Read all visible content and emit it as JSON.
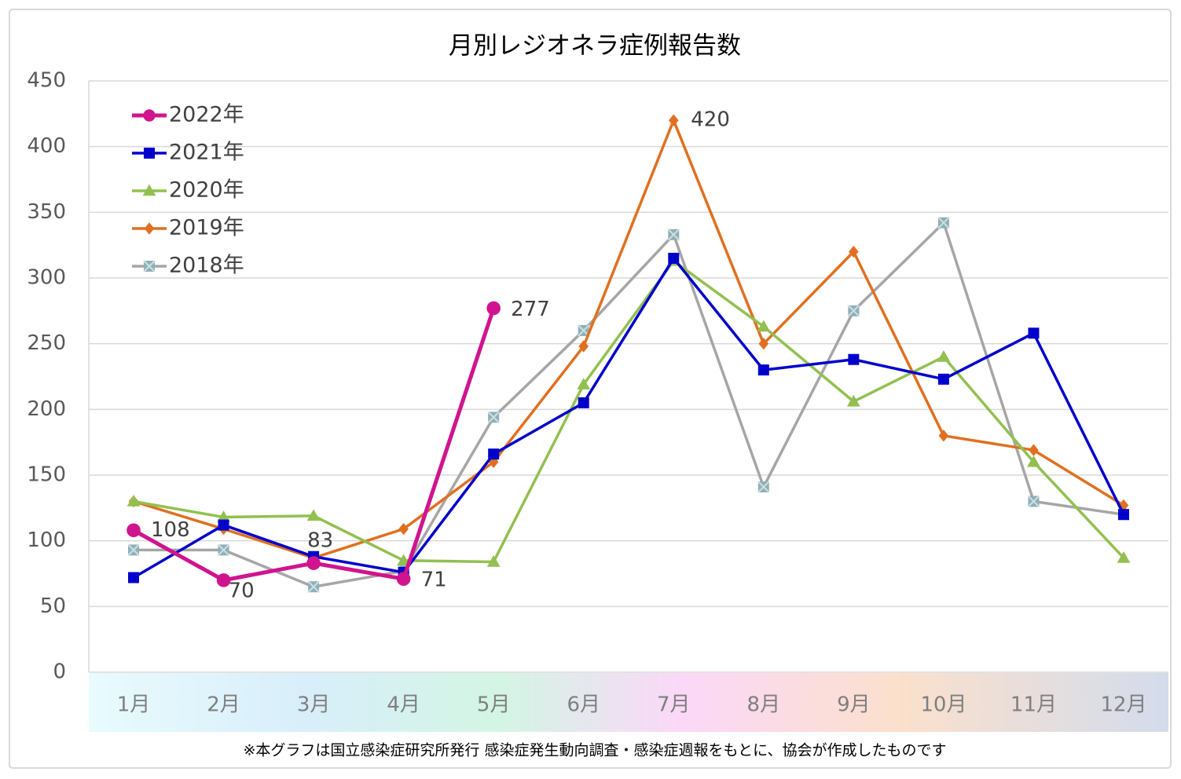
{
  "chart_data": {
    "type": "line",
    "title": "月別レジオネラ症例報告数",
    "footnote": "※本グラフは国立感染症研究所発行 感染症発生動向調査・感染症週報をもとに、協会が作成したものです",
    "categories": [
      "1月",
      "2月",
      "3月",
      "4月",
      "5月",
      "6月",
      "7月",
      "8月",
      "9月",
      "10月",
      "11月",
      "12月"
    ],
    "ylim": [
      0,
      450
    ],
    "yticks": [
      0,
      50,
      100,
      150,
      200,
      250,
      300,
      350,
      400,
      450
    ],
    "grid": true,
    "legend": "upper left",
    "series": [
      {
        "name": "2022年",
        "color": "#d0148f",
        "marker": "circle",
        "values": [
          108,
          70,
          83,
          71,
          277,
          null,
          null,
          null,
          null,
          null,
          null,
          null
        ],
        "value_labels": [
          "108",
          "70",
          "83",
          "71",
          "277",
          null,
          null,
          null,
          null,
          null,
          null,
          null
        ]
      },
      {
        "name": "2021年",
        "color": "#0000cc",
        "marker": "square",
        "values": [
          72,
          112,
          88,
          76,
          166,
          205,
          315,
          230,
          238,
          223,
          258,
          120
        ]
      },
      {
        "name": "2020年",
        "color": "#92c050",
        "marker": "triangle",
        "values": [
          130,
          118,
          119,
          85,
          84,
          219,
          313,
          263,
          206,
          240,
          160,
          87
        ]
      },
      {
        "name": "2019年",
        "color": "#e07020",
        "marker": "diamond",
        "values": [
          130,
          109,
          87,
          109,
          160,
          248,
          420,
          250,
          320,
          180,
          169,
          127
        ],
        "value_labels": [
          null,
          null,
          null,
          null,
          null,
          null,
          "420",
          null,
          null,
          null,
          null,
          null
        ]
      },
      {
        "name": "2018年",
        "color": "#a6a6a6",
        "marker": "xsquare",
        "values": [
          93,
          93,
          65,
          77,
          194,
          260,
          333,
          141,
          275,
          342,
          130,
          120
        ]
      }
    ]
  }
}
